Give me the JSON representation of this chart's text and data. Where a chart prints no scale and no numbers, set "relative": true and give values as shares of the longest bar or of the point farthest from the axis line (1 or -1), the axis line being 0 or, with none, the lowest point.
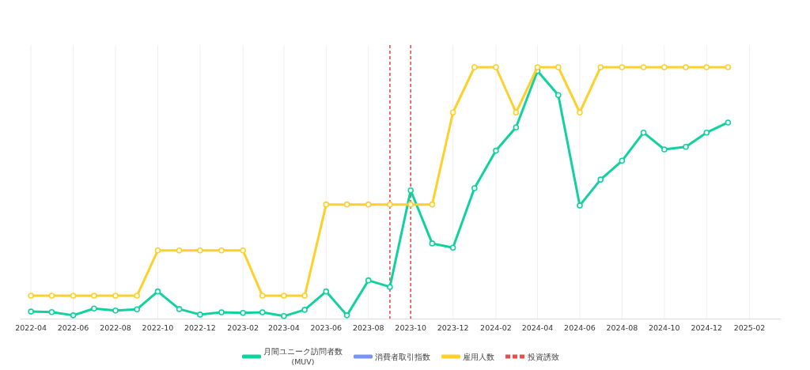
{
  "chart_data": {
    "type": "line",
    "relative": true,
    "x": [
      "2022-04",
      "2022-05",
      "2022-06",
      "2022-07",
      "2022-08",
      "2022-09",
      "2022-10",
      "2022-11",
      "2022-12",
      "2023-01",
      "2023-02",
      "2023-03",
      "2023-04",
      "2023-05",
      "2023-06",
      "2023-07",
      "2023-08",
      "2023-09",
      "2023-10",
      "2023-11",
      "2023-12",
      "2024-01",
      "2024-02",
      "2024-03",
      "2024-04",
      "2024-05",
      "2024-06",
      "2024-07",
      "2024-08",
      "2024-09",
      "2024-10",
      "2024-11",
      "2024-12",
      "2025-01"
    ],
    "xlim": [
      "2022-03-17",
      "2025-03-18"
    ],
    "xticks": [
      "2022-04",
      "2022-06",
      "2022-08",
      "2022-10",
      "2022-12",
      "2023-02",
      "2023-04",
      "2023-06",
      "2023-08",
      "2023-10",
      "2023-12",
      "2024-02",
      "2024-04",
      "2024-06",
      "2024-08",
      "2024-10",
      "2024-12",
      "2025-02"
    ],
    "series": [
      {
        "name": "月間ユニーク訪問者数\n(MUV)",
        "color": "#11d19f",
        "values": [
          0.028,
          0.026,
          0.013,
          0.04,
          0.032,
          0.037,
          0.108,
          0.038,
          0.016,
          0.025,
          0.023,
          0.025,
          0.01,
          0.035,
          0.108,
          0.013,
          0.152,
          0.126,
          0.51,
          0.299,
          0.282,
          0.519,
          0.668,
          0.761,
          0.985,
          0.889,
          0.45,
          0.553,
          0.628,
          0.74,
          0.673,
          0.683,
          0.74,
          0.78
        ]
      },
      {
        "name": "消費者取引指数",
        "color": "#7b93f3",
        "values": [
          null,
          null,
          null,
          null,
          null,
          null,
          null,
          null,
          null,
          null,
          null,
          null,
          null,
          null,
          null,
          null,
          null,
          null,
          null,
          null,
          null,
          null,
          null,
          null,
          null,
          null,
          null,
          null,
          null,
          null,
          null,
          null,
          null,
          null
        ]
      },
      {
        "name": "雇用人数",
        "color": "#fdd02c",
        "values": [
          0.091,
          0.091,
          0.091,
          0.091,
          0.091,
          0.091,
          0.271,
          0.271,
          0.271,
          0.271,
          0.271,
          0.091,
          0.091,
          0.091,
          0.454,
          0.454,
          0.454,
          0.454,
          0.454,
          0.454,
          0.82,
          1,
          1,
          0.82,
          1,
          1,
          0.82,
          1,
          1,
          1,
          1,
          1,
          1,
          1
        ]
      }
    ],
    "ref_lines": [
      {
        "axis": "x",
        "value": "2023-09",
        "label": "投資誘致",
        "color": "#e94f4f",
        "line_style": "dashed"
      },
      {
        "axis": "x",
        "value": "2023-10",
        "color": "#e94f4f",
        "line_style": "dashed"
      }
    ],
    "grid": "x",
    "legend": "bottom",
    "marker": "circle",
    "line_style": "solid"
  }
}
